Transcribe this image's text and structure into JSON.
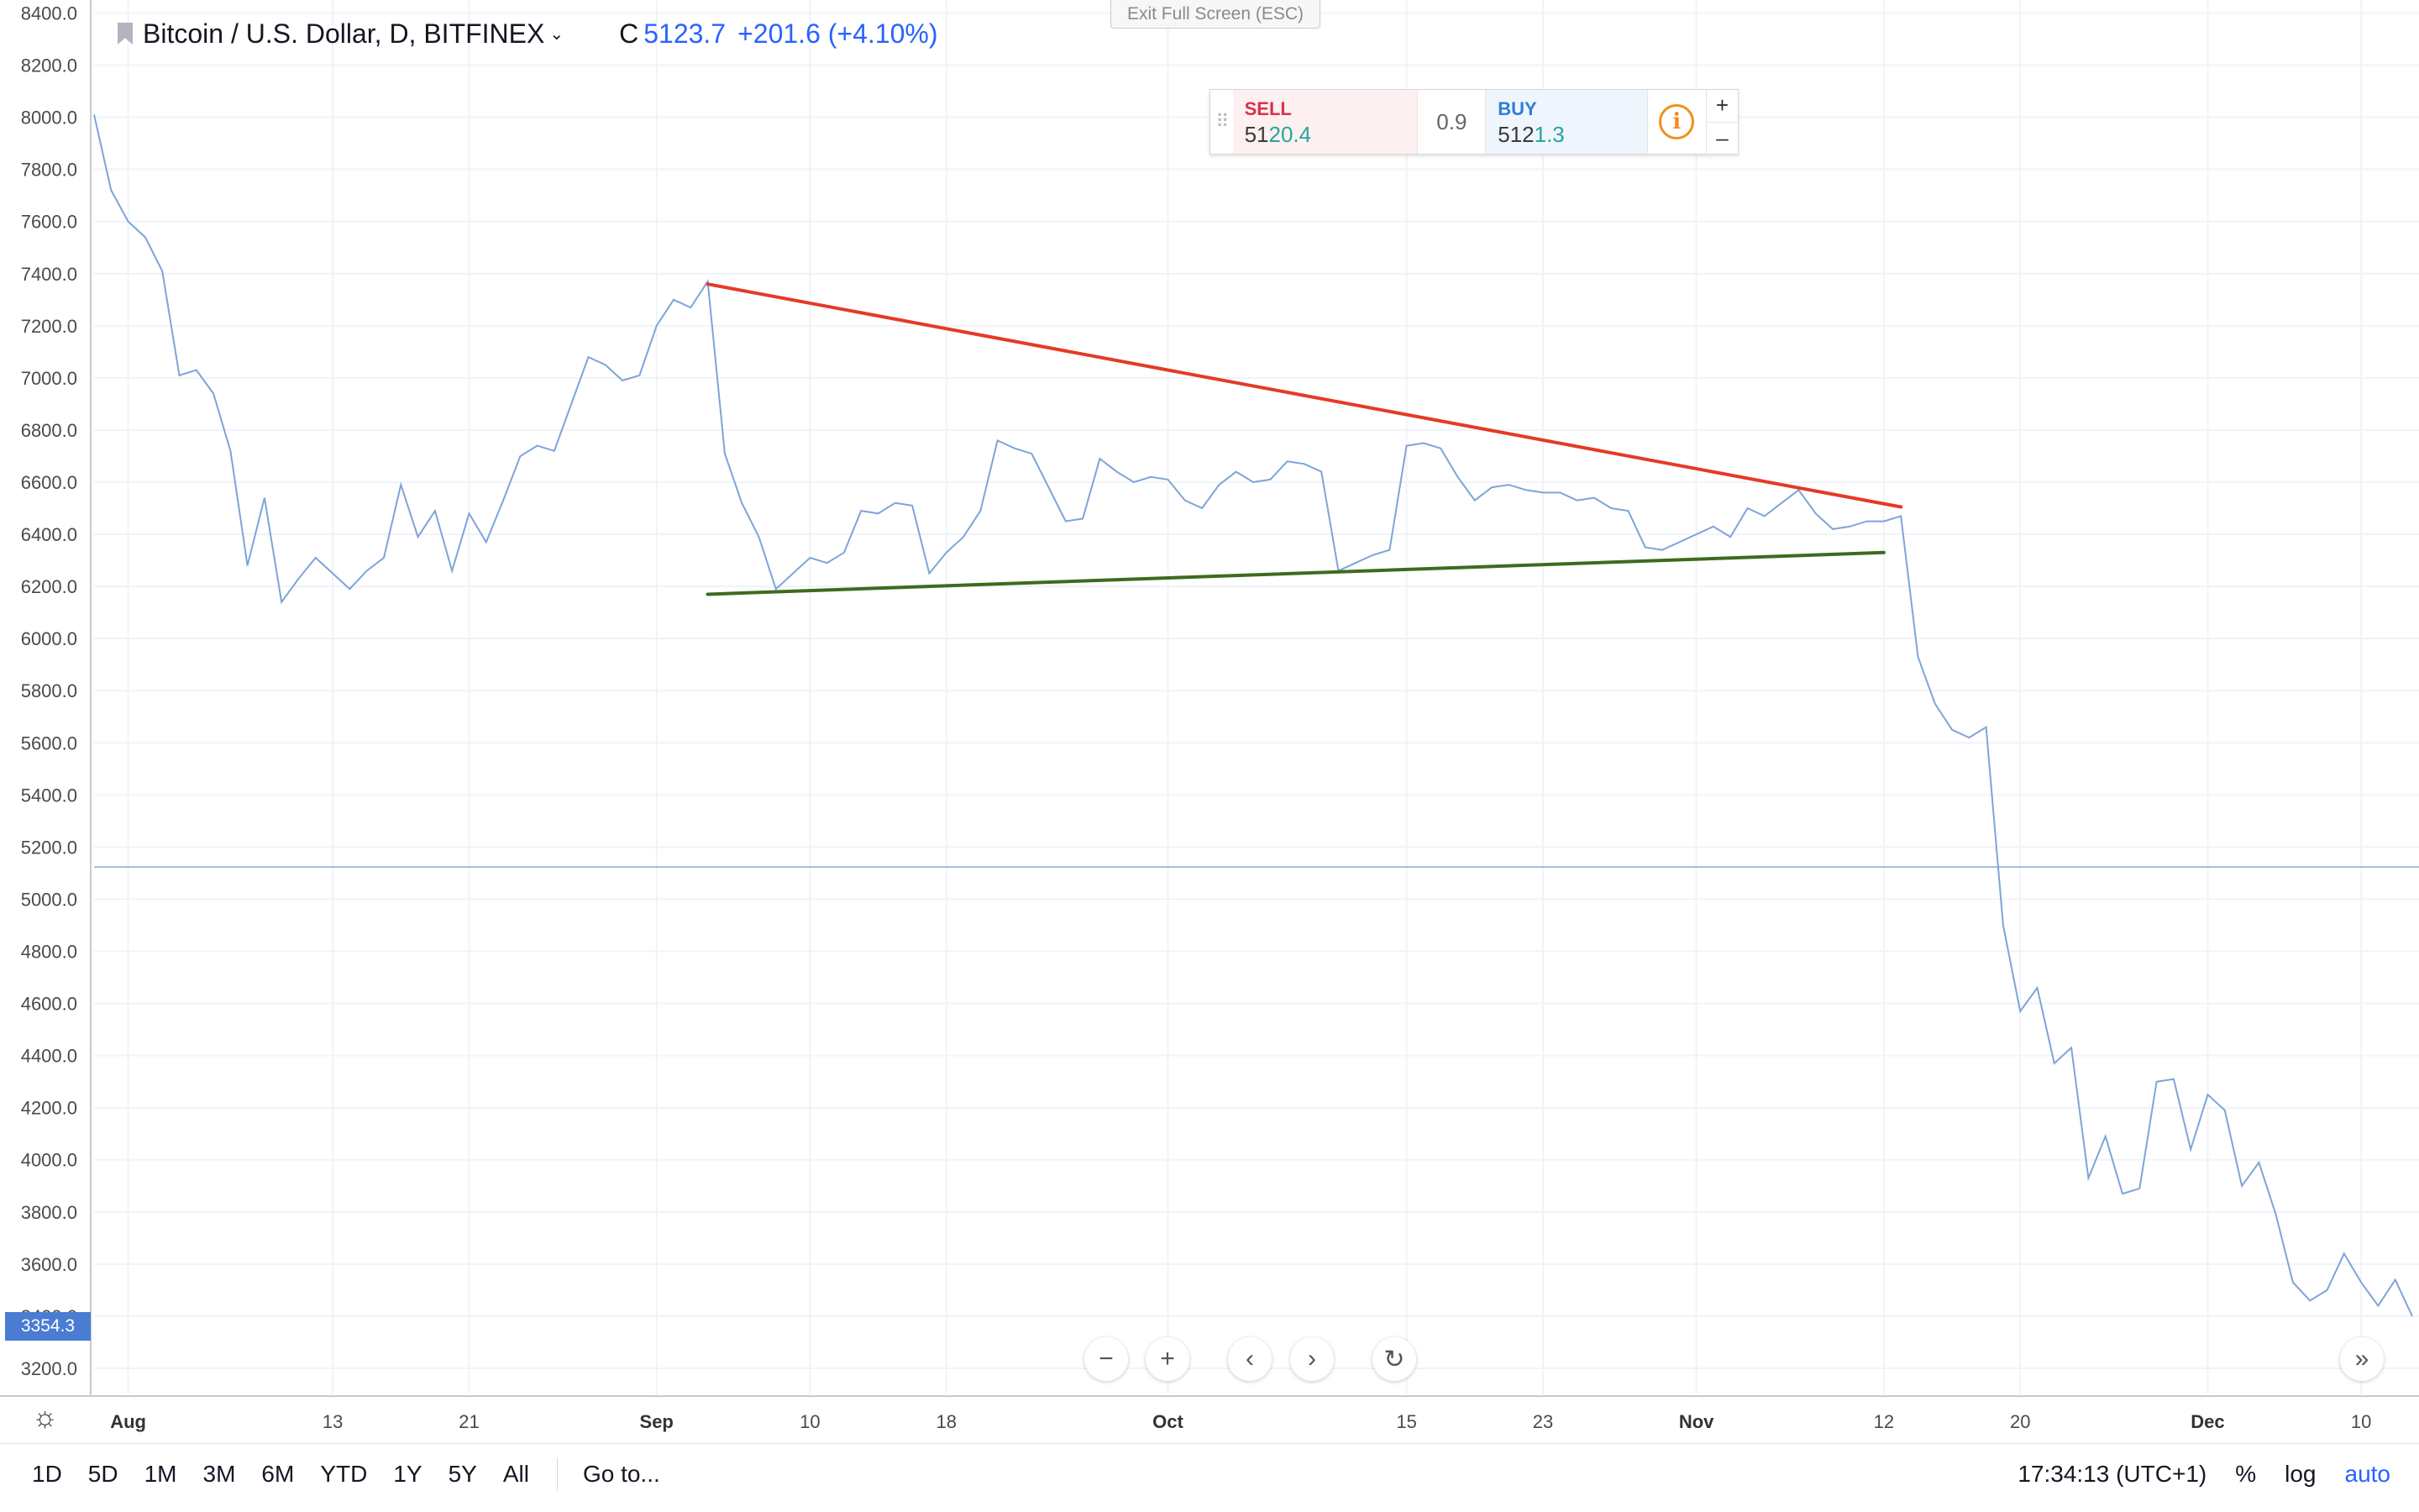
{
  "legend": {
    "symbol": "Bitcoin / U.S. Dollar, D, BITFINEX",
    "caret": "⌄",
    "close_key": "C",
    "close_value": "5123.7",
    "change": "+201.6 (+4.10%)"
  },
  "exit_fullscreen": "Exit Full Screen (ESC)",
  "trade_panel": {
    "grip": "⠿",
    "sell_label": "SELL",
    "sell_price_major": "51",
    "sell_price_minor": "20.4",
    "spread": "0.9",
    "buy_label": "BUY",
    "buy_price_major": "512",
    "buy_price_minor": "1.3",
    "info_icon": "i",
    "plus": "+",
    "minus": "–"
  },
  "price_badge": "3354.3",
  "nav_buttons": {
    "zoom_out": "−",
    "zoom_in": "+",
    "scroll_left": "‹",
    "scroll_right": "›",
    "reset": "↻",
    "scroll_end": "»"
  },
  "settings_icon": "☼",
  "bottom_bar": {
    "ranges": [
      "1D",
      "5D",
      "1M",
      "3M",
      "6M",
      "YTD",
      "1Y",
      "5Y",
      "All"
    ],
    "goto": "Go to...",
    "time": "17:34:13 (UTC+1)",
    "percent": "%",
    "log": "log",
    "auto": "auto"
  },
  "colors": {
    "series_line": "#7ea4d8",
    "resistance_line": "#e53a26",
    "support_line": "#3d6b1e",
    "last_price_line": "#9fbde6",
    "accent": "#2962ff"
  },
  "chart_data": {
    "type": "line",
    "symbol": "BTCUSD",
    "timeframe": "D",
    "ylim": [
      3100,
      8450
    ],
    "yticks": [
      3200,
      3400,
      3600,
      3800,
      4000,
      4200,
      4400,
      4600,
      4800,
      5000,
      5200,
      5400,
      5600,
      5800,
      6000,
      6200,
      6400,
      6600,
      6800,
      7000,
      7200,
      7400,
      7600,
      7800,
      8000,
      8200,
      8400
    ],
    "xlim": [
      "2018-07-30",
      "2018-12-13"
    ],
    "xticks": [
      {
        "date": "2018-08-01",
        "label": "Aug",
        "month": true
      },
      {
        "date": "2018-08-13",
        "label": "13"
      },
      {
        "date": "2018-08-21",
        "label": "21"
      },
      {
        "date": "2018-09-01",
        "label": "Sep",
        "month": true
      },
      {
        "date": "2018-09-10",
        "label": "10"
      },
      {
        "date": "2018-09-18",
        "label": "18"
      },
      {
        "date": "2018-10-01",
        "label": "Oct",
        "month": true
      },
      {
        "date": "2018-10-15",
        "label": "15"
      },
      {
        "date": "2018-10-23",
        "label": "23"
      },
      {
        "date": "2018-11-01",
        "label": "Nov",
        "month": true
      },
      {
        "date": "2018-11-12",
        "label": "12"
      },
      {
        "date": "2018-11-20",
        "label": "20"
      },
      {
        "date": "2018-12-01",
        "label": "Dec",
        "month": true
      },
      {
        "date": "2018-12-10",
        "label": "10"
      }
    ],
    "start_date": "2018-07-30",
    "values": [
      8010,
      7720,
      7600,
      7540,
      7410,
      7010,
      7030,
      6940,
      6720,
      6280,
      6540,
      6140,
      6230,
      6310,
      6250,
      6190,
      6260,
      6310,
      6590,
      6390,
      6490,
      6260,
      6480,
      6370,
      6530,
      6700,
      6740,
      6720,
      6900,
      7080,
      7050,
      6990,
      7010,
      7200,
      7300,
      7270,
      7370,
      6710,
      6520,
      6390,
      6190,
      6250,
      6310,
      6290,
      6330,
      6490,
      6480,
      6520,
      6510,
      6250,
      6330,
      6390,
      6490,
      6760,
      6730,
      6710,
      6580,
      6450,
      6460,
      6690,
      6640,
      6600,
      6620,
      6610,
      6530,
      6500,
      6590,
      6640,
      6600,
      6610,
      6680,
      6670,
      6640,
      6260,
      6290,
      6320,
      6340,
      6740,
      6750,
      6730,
      6620,
      6530,
      6580,
      6590,
      6570,
      6560,
      6560,
      6530,
      6540,
      6500,
      6490,
      6350,
      6340,
      6370,
      6400,
      6430,
      6390,
      6500,
      6470,
      6520,
      6570,
      6480,
      6420,
      6430,
      6450,
      6450,
      6470,
      5930,
      5750,
      5650,
      5620,
      5660,
      4900,
      4570,
      4660,
      4370,
      4430,
      3930,
      4090,
      3870,
      3890,
      4300,
      4310,
      4040,
      4250,
      4190,
      3900,
      3990,
      3790,
      3530,
      3460,
      3500,
      3640,
      3530,
      3440,
      3540,
      3400
    ],
    "last_price": 5123.7,
    "trendlines": [
      {
        "color": "#e53a26",
        "from": {
          "date": "2018-09-04",
          "price": 7360
        },
        "to": {
          "date": "2018-11-13",
          "price": 6505
        }
      },
      {
        "color": "#3d6b1e",
        "from": {
          "date": "2018-09-04",
          "price": 6170
        },
        "to": {
          "date": "2018-11-12",
          "price": 6330
        }
      }
    ],
    "grid": true
  }
}
